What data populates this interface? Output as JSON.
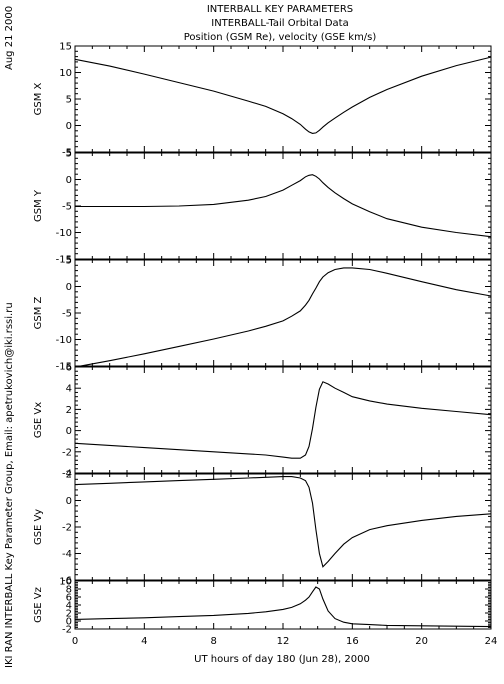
{
  "header": {
    "line1": "INTERBALL KEY PARAMETERS",
    "line2": "INTERBALL-Tail Orbital Data",
    "line3": "Position (GSM Re), velocity (GSE km/s)"
  },
  "side": {
    "date": "Aug 21 2000",
    "credit": "IKI RAN INTERBALL Key Parameter Group, Email: apetrukovich@iki.rssi.ru"
  },
  "chart_data": {
    "type": "line",
    "title": "INTERBALL KEY PARAMETERS",
    "xlabel": "UT hours of day 180 (Jun 28), 2000",
    "xlim": [
      0,
      24
    ],
    "xticks": [
      "0",
      "4",
      "8",
      "12",
      "16",
      "20",
      "24"
    ],
    "x": [
      0,
      2,
      4,
      6,
      8,
      10,
      11,
      12,
      12.5,
      13,
      13.3,
      13.5,
      13.7,
      13.9,
      14.1,
      14.3,
      14.6,
      15,
      15.5,
      16,
      17,
      18,
      20,
      22,
      24
    ],
    "panels": [
      {
        "label": "GSM X",
        "ylim": [
          -5,
          15
        ],
        "yticks": [
          "-5",
          "0",
          "5",
          "10",
          "15"
        ],
        "values": [
          12.5,
          11.2,
          9.7,
          8.1,
          6.5,
          4.6,
          3.6,
          2.2,
          1.3,
          0.2,
          -0.7,
          -1.2,
          -1.5,
          -1.4,
          -0.9,
          -0.3,
          0.5,
          1.4,
          2.5,
          3.5,
          5.3,
          6.8,
          9.3,
          11.3,
          12.9
        ]
      },
      {
        "label": "GSM Y",
        "ylim": [
          -15,
          5
        ],
        "yticks": [
          "-15",
          "-10",
          "-5",
          "0",
          "5"
        ],
        "values": [
          -5.1,
          -5.1,
          -5.1,
          -5.0,
          -4.7,
          -3.9,
          -3.2,
          -2.0,
          -1.1,
          -0.2,
          0.5,
          0.8,
          0.9,
          0.6,
          0.1,
          -0.6,
          -1.5,
          -2.5,
          -3.6,
          -4.6,
          -6.1,
          -7.4,
          -9.0,
          -10.0,
          -10.8
        ]
      },
      {
        "label": "GSM Z",
        "ylim": [
          -15,
          5
        ],
        "yticks": [
          "-15",
          "-10",
          "-5",
          "0",
          "5"
        ],
        "values": [
          -15.2,
          -14.0,
          -12.7,
          -11.3,
          -9.9,
          -8.4,
          -7.5,
          -6.5,
          -5.6,
          -4.6,
          -3.5,
          -2.6,
          -1.4,
          -0.3,
          0.9,
          1.8,
          2.6,
          3.2,
          3.5,
          3.5,
          3.2,
          2.5,
          0.9,
          -0.6,
          -1.8
        ]
      },
      {
        "label": "GSE Vx",
        "ylim": [
          -4,
          6
        ],
        "yticks": [
          "-4",
          "-2",
          "0",
          "2",
          "4",
          "6"
        ],
        "values": [
          -1.2,
          -1.4,
          -1.6,
          -1.8,
          -2.0,
          -2.2,
          -2.3,
          -2.5,
          -2.6,
          -2.6,
          -2.3,
          -1.5,
          0.2,
          2.2,
          3.9,
          4.6,
          4.4,
          4.0,
          3.6,
          3.2,
          2.8,
          2.5,
          2.1,
          1.8,
          1.5
        ]
      },
      {
        "label": "GSE Vy",
        "ylim": [
          -6,
          2
        ],
        "yticks": [
          "-6",
          "-4",
          "-2",
          "0",
          "2"
        ],
        "values": [
          1.2,
          1.3,
          1.4,
          1.5,
          1.6,
          1.7,
          1.75,
          1.8,
          1.8,
          1.7,
          1.5,
          1.0,
          -0.2,
          -2.2,
          -4.0,
          -5.0,
          -4.6,
          -4.0,
          -3.3,
          -2.8,
          -2.2,
          -1.9,
          -1.5,
          -1.2,
          -1.0
        ]
      },
      {
        "label": "GSE Vz",
        "ylim": [
          -2,
          10
        ],
        "yticks": [
          "-2",
          "0",
          "2",
          "4",
          "6",
          "8",
          "10"
        ],
        "values": [
          0.4,
          0.6,
          0.8,
          1.1,
          1.4,
          1.9,
          2.3,
          2.9,
          3.4,
          4.3,
          5.2,
          6.0,
          7.3,
          8.5,
          8.0,
          5.5,
          2.5,
          0.6,
          -0.3,
          -0.7,
          -0.9,
          -1.1,
          -1.2,
          -1.3,
          -1.4
        ]
      }
    ]
  }
}
